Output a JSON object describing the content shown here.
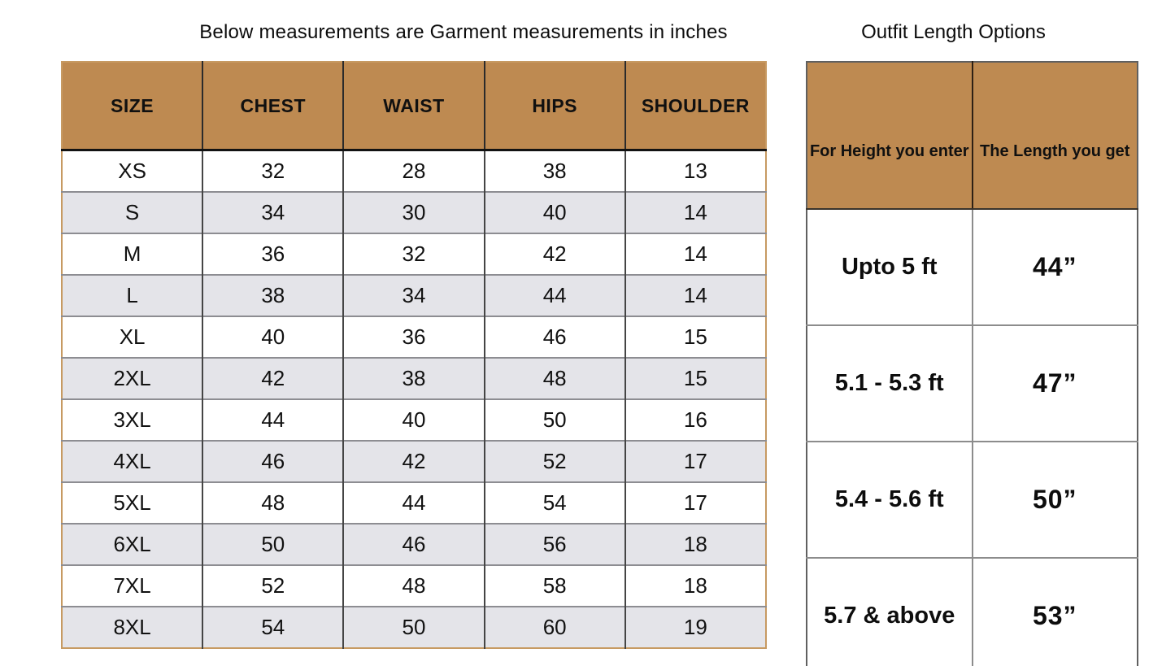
{
  "size_table": {
    "title": "Below measurements are Garment measurements in inches",
    "headers": [
      "SIZE",
      "CHEST",
      "WAIST",
      "HIPS",
      "SHOULDER"
    ],
    "rows": [
      {
        "size": "XS",
        "chest": "32",
        "waist": "28",
        "hips": "38",
        "shoulder": "13"
      },
      {
        "size": "S",
        "chest": "34",
        "waist": "30",
        "hips": "40",
        "shoulder": "14"
      },
      {
        "size": "M",
        "chest": "36",
        "waist": "32",
        "hips": "42",
        "shoulder": "14"
      },
      {
        "size": "L",
        "chest": "38",
        "waist": "34",
        "hips": "44",
        "shoulder": "14"
      },
      {
        "size": "XL",
        "chest": "40",
        "waist": "36",
        "hips": "46",
        "shoulder": "15"
      },
      {
        "size": "2XL",
        "chest": "42",
        "waist": "38",
        "hips": "48",
        "shoulder": "15"
      },
      {
        "size": "3XL",
        "chest": "44",
        "waist": "40",
        "hips": "50",
        "shoulder": "16"
      },
      {
        "size": "4XL",
        "chest": "46",
        "waist": "42",
        "hips": "52",
        "shoulder": "17"
      },
      {
        "size": "5XL",
        "chest": "48",
        "waist": "44",
        "hips": "54",
        "shoulder": "17"
      },
      {
        "size": "6XL",
        "chest": "50",
        "waist": "46",
        "hips": "56",
        "shoulder": "18"
      },
      {
        "size": "7XL",
        "chest": "52",
        "waist": "48",
        "hips": "58",
        "shoulder": "18"
      },
      {
        "size": "8XL",
        "chest": "54",
        "waist": "50",
        "hips": "60",
        "shoulder": "19"
      }
    ]
  },
  "length_table": {
    "title": "Outfit Length Options",
    "headers": [
      "For Height you enter",
      "The Length you get"
    ],
    "rows": [
      {
        "height": "Upto 5 ft",
        "length": "44”"
      },
      {
        "height": "5.1 - 5.3 ft",
        "length": "47”"
      },
      {
        "height": "5.4 - 5.6 ft",
        "length": "50”"
      },
      {
        "height": "5.7 & above",
        "length": "53”"
      }
    ]
  },
  "colors": {
    "header_bg": "#BE8A51",
    "alt_row_bg": "#E4E4E9",
    "left_table_border": "#C79A62",
    "right_table_border": "#606060",
    "text": "#111111"
  },
  "chart_data": [
    {
      "type": "table",
      "title": "Below measurements are Garment measurements in inches",
      "columns": [
        "SIZE",
        "CHEST",
        "WAIST",
        "HIPS",
        "SHOULDER"
      ],
      "rows": [
        [
          "XS",
          32,
          28,
          38,
          13
        ],
        [
          "S",
          34,
          30,
          40,
          14
        ],
        [
          "M",
          36,
          32,
          42,
          14
        ],
        [
          "L",
          38,
          34,
          44,
          14
        ],
        [
          "XL",
          40,
          36,
          46,
          15
        ],
        [
          "2XL",
          42,
          38,
          48,
          15
        ],
        [
          "3XL",
          44,
          40,
          50,
          16
        ],
        [
          "4XL",
          46,
          42,
          52,
          17
        ],
        [
          "5XL",
          48,
          44,
          54,
          17
        ],
        [
          "6XL",
          50,
          46,
          56,
          18
        ],
        [
          "7XL",
          52,
          48,
          58,
          18
        ],
        [
          "8XL",
          54,
          50,
          60,
          19
        ]
      ]
    },
    {
      "type": "table",
      "title": "Outfit Length Options",
      "columns": [
        "For Height you enter",
        "The Length you get"
      ],
      "rows": [
        [
          "Upto 5 ft",
          "44”"
        ],
        [
          "5.1 - 5.3 ft",
          "47”"
        ],
        [
          "5.4 - 5.6 ft",
          "50”"
        ],
        [
          "5.7 & above",
          "53”"
        ]
      ]
    }
  ]
}
